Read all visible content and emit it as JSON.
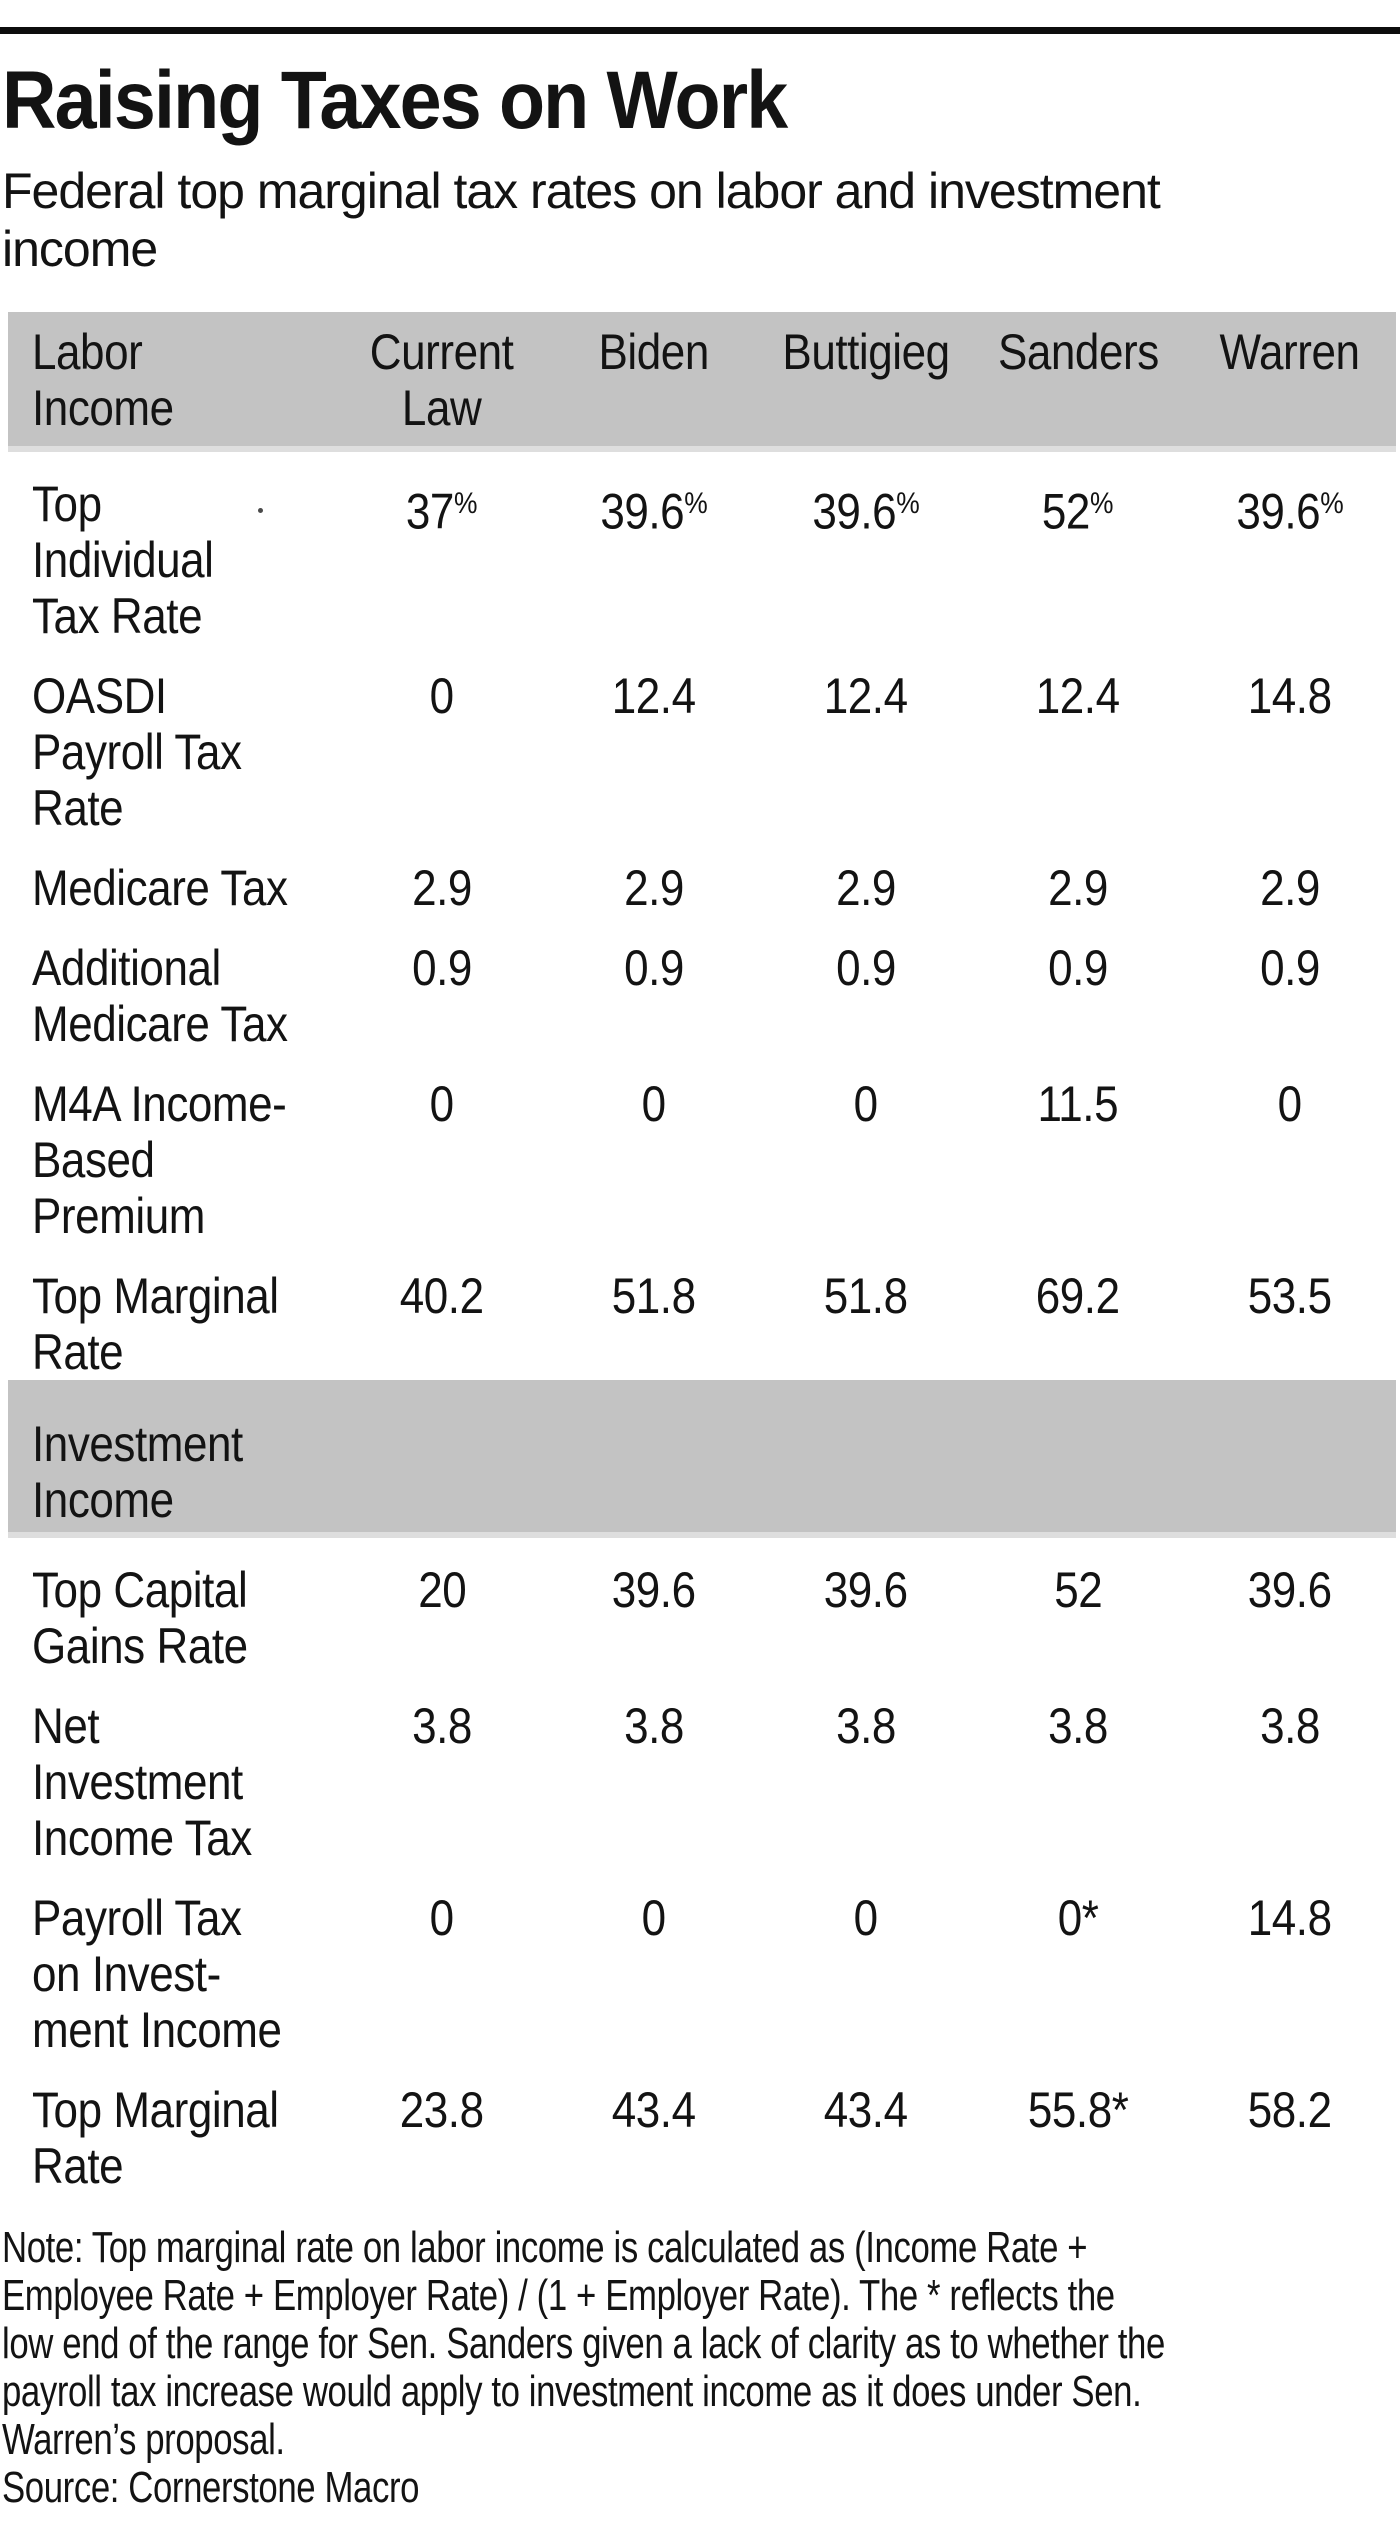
{
  "page": {
    "title": "Raising Taxes on Work",
    "subtitle": "Federal top marginal tax rates on labor and investment\nincome"
  },
  "table": {
    "section1_label": "Labor\nIncome",
    "section2_label": "Investment\nIncome",
    "columns": [
      "Current\nLaw",
      "Biden",
      "Buttigieg",
      "Sanders",
      "Warren"
    ],
    "labor_rows": [
      {
        "label": "Top\nIndividual\nTax Rate",
        "values": [
          "37%",
          "39.6%",
          "39.6%",
          "52%",
          "39.6%"
        ]
      },
      {
        "label": "OASDI\nPayroll Tax\nRate",
        "values": [
          "0",
          "12.4",
          "12.4",
          "12.4",
          "14.8"
        ]
      },
      {
        "label": "Medicare Tax",
        "values": [
          "2.9",
          "2.9",
          "2.9",
          "2.9",
          "2.9"
        ]
      },
      {
        "label": "Additional\nMedicare Tax",
        "values": [
          "0.9",
          "0.9",
          "0.9",
          "0.9",
          "0.9"
        ]
      },
      {
        "label": "M4A Income-\nBased\nPremium",
        "values": [
          "0",
          "0",
          "0",
          "11.5",
          "0"
        ]
      },
      {
        "label": "Top Marginal\nRate",
        "values": [
          "40.2",
          "51.8",
          "51.8",
          "69.2",
          "53.5"
        ]
      }
    ],
    "investment_rows": [
      {
        "label": "Top Capital\nGains Rate",
        "values": [
          "20",
          "39.6",
          "39.6",
          "52",
          "39.6"
        ]
      },
      {
        "label": "Net\nInvestment\nIncome Tax",
        "values": [
          "3.8",
          "3.8",
          "3.8",
          "3.8",
          "3.8"
        ]
      },
      {
        "label": "Payroll Tax\non Invest-\nment Income",
        "values": [
          "0",
          "0",
          "0",
          "0*",
          "14.8"
        ]
      },
      {
        "label": "Top Marginal\nRate",
        "values": [
          "23.8",
          "43.4",
          "43.4",
          "55.8*",
          "58.2"
        ]
      }
    ]
  },
  "footer": {
    "note": "Note: Top marginal rate on labor income is calculated as (Income Rate +\nEmployee Rate + Employer Rate) / (1 + Employer Rate). The * reflects the\nlow end of the range for Sen. Sanders given a lack of clarity as to whether the\npayroll tax increase would apply to investment income as it does under Sen.\nWarren’s proposal.",
    "source": "Source: Cornerstone Macro"
  },
  "colors": {
    "band_gray": "#c3c3c3",
    "rule_black": "#0d0d0d",
    "text": "#131313"
  },
  "chart_data": {
    "type": "table",
    "title": "Raising Taxes on Work",
    "subtitle": "Federal top marginal tax rates on labor and investment income",
    "columns": [
      "Current Law",
      "Biden",
      "Buttigieg",
      "Sanders",
      "Warren"
    ],
    "sections": [
      {
        "name": "Labor Income",
        "rows": [
          {
            "label": "Top Individual Tax Rate",
            "values": [
              37,
              39.6,
              39.6,
              52,
              39.6
            ],
            "unit": "%"
          },
          {
            "label": "OASDI Payroll Tax Rate",
            "values": [
              0,
              12.4,
              12.4,
              12.4,
              14.8
            ]
          },
          {
            "label": "Medicare Tax",
            "values": [
              2.9,
              2.9,
              2.9,
              2.9,
              2.9
            ]
          },
          {
            "label": "Additional Medicare Tax",
            "values": [
              0.9,
              0.9,
              0.9,
              0.9,
              0.9
            ]
          },
          {
            "label": "M4A Income-Based Premium",
            "values": [
              0,
              0,
              0,
              11.5,
              0
            ]
          },
          {
            "label": "Top Marginal Rate",
            "values": [
              40.2,
              51.8,
              51.8,
              69.2,
              53.5
            ]
          }
        ]
      },
      {
        "name": "Investment Income",
        "rows": [
          {
            "label": "Top Capital Gains Rate",
            "values": [
              20,
              39.6,
              39.6,
              52,
              39.6
            ]
          },
          {
            "label": "Net Investment Income Tax",
            "values": [
              3.8,
              3.8,
              3.8,
              3.8,
              3.8
            ]
          },
          {
            "label": "Payroll Tax on Investment Income",
            "values": [
              0,
              0,
              0,
              "0*",
              14.8
            ]
          },
          {
            "label": "Top Marginal Rate",
            "values": [
              23.8,
              43.4,
              43.4,
              "55.8*",
              58.2
            ]
          }
        ]
      }
    ],
    "note": "Top marginal rate on labor income is calculated as (Income Rate + Employee Rate + Employer Rate) / (1 + Employer Rate). The * reflects the low end of the range for Sen. Sanders given a lack of clarity as to whether the payroll tax increase would apply to investment income as it does under Sen. Warren’s proposal.",
    "source": "Cornerstone Macro"
  }
}
